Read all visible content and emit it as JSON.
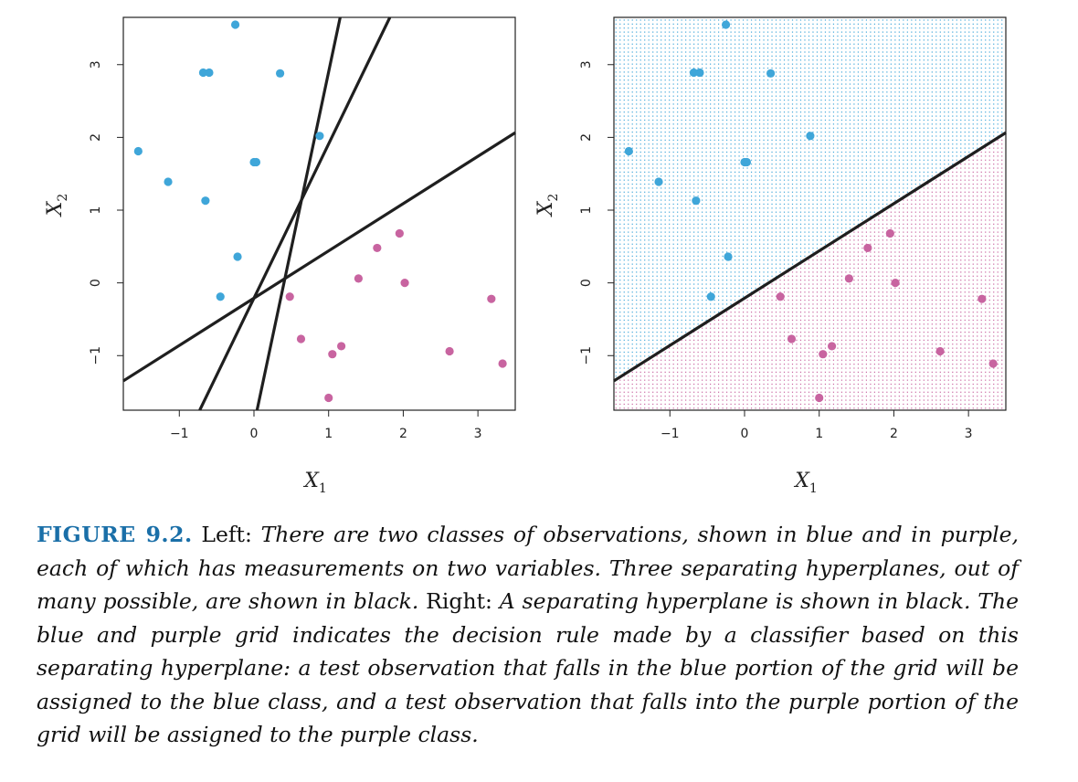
{
  "figure": {
    "label": "FIGURE 9.2.",
    "caption": [
      {
        "text": " Left: ",
        "italic": false
      },
      {
        "text": "There are two classes of observations, shown in blue and in purple, each of which has measurements on two variables. Three separating hyperplanes, out of many possible, are shown in black.",
        "italic": true
      },
      {
        "text": " Right: ",
        "italic": false
      },
      {
        "text": "A separating hyperplane is shown in black. The blue and purple grid indicates the decision rule made by a classifier based on this separating hyperplane: a test observation that falls in the blue portion of the grid will be assigned to the blue class, and a test observation that falls into the purple portion of the grid will be assigned to the purple class.",
        "italic": true
      }
    ]
  },
  "colors": {
    "blue": "#3fa6d9",
    "purple": "#c864a0",
    "line": "#1f1f1f",
    "caption_label": "#1a6fa8"
  },
  "chart_data": [
    {
      "type": "scatter",
      "panel": "left",
      "xlabel": "X",
      "xlabel_sub": "1",
      "ylabel": "X",
      "ylabel_sub": "2",
      "xlim": [
        -1.75,
        3.5
      ],
      "ylim": [
        -1.75,
        3.65
      ],
      "xticks": [
        -1,
        0,
        1,
        2,
        3
      ],
      "yticks": [
        -1,
        0,
        1,
        2,
        3
      ],
      "series": [
        {
          "color": "blue",
          "points": [
            [
              -0.25,
              3.55
            ],
            [
              -0.68,
              2.89
            ],
            [
              -0.6,
              2.89
            ],
            [
              0.35,
              2.88
            ],
            [
              0.88,
              2.02
            ],
            [
              -1.55,
              1.81
            ],
            [
              0.0,
              1.66
            ],
            [
              0.03,
              1.66
            ],
            [
              -1.15,
              1.39
            ],
            [
              -0.65,
              1.13
            ],
            [
              -0.22,
              0.36
            ],
            [
              -0.45,
              -0.19
            ]
          ]
        },
        {
          "color": "purple",
          "points": [
            [
              1.95,
              0.68
            ],
            [
              1.65,
              0.48
            ],
            [
              1.4,
              0.06
            ],
            [
              2.02,
              0.0
            ],
            [
              0.48,
              -0.19
            ],
            [
              3.18,
              -0.22
            ],
            [
              0.63,
              -0.77
            ],
            [
              1.17,
              -0.87
            ],
            [
              1.05,
              -0.98
            ],
            [
              2.62,
              -0.94
            ],
            [
              3.33,
              -1.11
            ],
            [
              1.0,
              -1.58
            ]
          ]
        }
      ],
      "lines": [
        {
          "slope": 0.65,
          "intercept": -0.21
        },
        {
          "slope": 2.12,
          "intercept": -0.21
        },
        {
          "slope": 4.85,
          "intercept": -1.95
        }
      ]
    },
    {
      "type": "scatter",
      "panel": "right",
      "xlabel": "X",
      "xlabel_sub": "1",
      "ylabel": "X",
      "ylabel_sub": "2",
      "xlim": [
        -1.75,
        3.5
      ],
      "ylim": [
        -1.75,
        3.65
      ],
      "xticks": [
        -1,
        0,
        1,
        2,
        3
      ],
      "yticks": [
        -1,
        0,
        1,
        2,
        3
      ],
      "grid": "decision-rule",
      "series": [
        {
          "color": "blue",
          "points": [
            [
              -0.25,
              3.55
            ],
            [
              -0.68,
              2.89
            ],
            [
              -0.6,
              2.89
            ],
            [
              0.35,
              2.88
            ],
            [
              0.88,
              2.02
            ],
            [
              -1.55,
              1.81
            ],
            [
              0.0,
              1.66
            ],
            [
              0.03,
              1.66
            ],
            [
              -1.15,
              1.39
            ],
            [
              -0.65,
              1.13
            ],
            [
              -0.22,
              0.36
            ],
            [
              -0.45,
              -0.19
            ]
          ]
        },
        {
          "color": "purple",
          "points": [
            [
              1.95,
              0.68
            ],
            [
              1.65,
              0.48
            ],
            [
              1.4,
              0.06
            ],
            [
              2.02,
              0.0
            ],
            [
              0.48,
              -0.19
            ],
            [
              3.18,
              -0.22
            ],
            [
              0.63,
              -0.77
            ],
            [
              1.17,
              -0.87
            ],
            [
              1.05,
              -0.98
            ],
            [
              2.62,
              -0.94
            ],
            [
              3.33,
              -1.11
            ],
            [
              1.0,
              -1.58
            ]
          ]
        }
      ],
      "lines": [
        {
          "slope": 0.65,
          "intercept": -0.21
        }
      ]
    }
  ]
}
